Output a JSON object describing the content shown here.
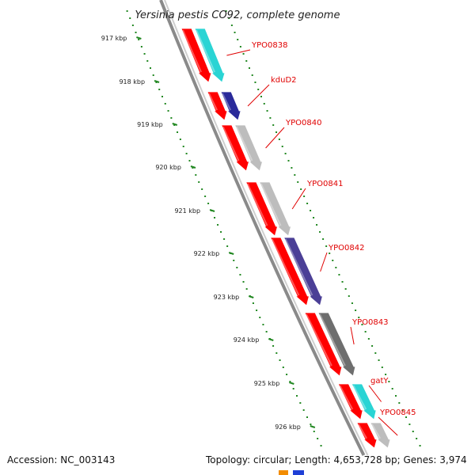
{
  "title": "Yersinia pestis CO92, complete genome",
  "footer": {
    "accession": "Accession: NC_003143",
    "topology": "Topology: circular; Length: 4,653,728 bp; Genes: 3,974"
  },
  "ticks": [
    "917 kbp",
    "918 kbp",
    "919 kbp",
    "920 kbp",
    "921 kbp",
    "922 kbp",
    "923 kbp",
    "924 kbp",
    "925 kbp",
    "926 kbp"
  ],
  "genes": [
    {
      "name": "YPO0838",
      "cog_color": "#2ad4d4"
    },
    {
      "name": "kduD2",
      "cog_color": "#2a2a9a"
    },
    {
      "name": "YPO0840",
      "cog_color": "#bdbdbd"
    },
    {
      "name": "YPO0841",
      "cog_color": "#bdbdbd"
    },
    {
      "name": "YPO0842",
      "cog_color": "#4b3f96"
    },
    {
      "name": "YPO0843",
      "cog_color": "#6e6e6e"
    },
    {
      "name": "gatY",
      "cog_color": "#2ad4d4"
    },
    {
      "name": "YPO0845",
      "cog_color": "#bdbdbd"
    }
  ],
  "colors": {
    "cds": "#ff0000",
    "label": "#e00000",
    "backbone": "#8a8a8a",
    "tick": "#228822"
  }
}
